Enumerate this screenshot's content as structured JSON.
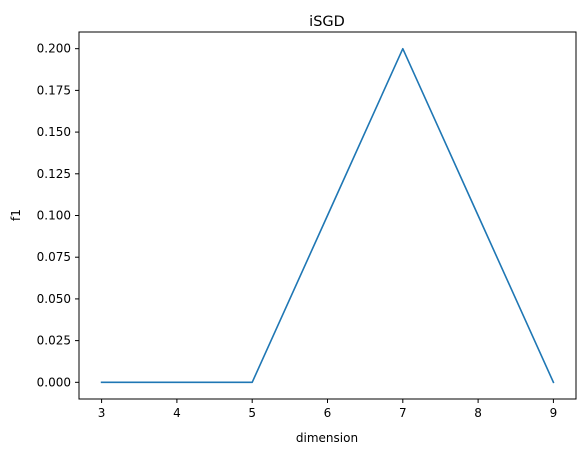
{
  "chart_data": {
    "type": "line",
    "title": "iSGD",
    "xlabel": "dimension",
    "ylabel": "f1",
    "x": [
      3,
      4,
      5,
      6,
      7,
      8,
      9
    ],
    "series": [
      {
        "values": [
          0.0,
          0.0,
          0.0,
          0.1,
          0.2,
          0.1,
          0.0
        ],
        "color": "#1f77b4"
      }
    ],
    "xlim": [
      2.7,
      9.3
    ],
    "ylim": [
      -0.01,
      0.21
    ],
    "xticks": [
      "3",
      "4",
      "5",
      "6",
      "7",
      "8",
      "9"
    ],
    "yticks": [
      "0.000",
      "0.025",
      "0.050",
      "0.075",
      "0.100",
      "0.125",
      "0.150",
      "0.175",
      "0.200"
    ],
    "grid": false,
    "legend": "none"
  }
}
